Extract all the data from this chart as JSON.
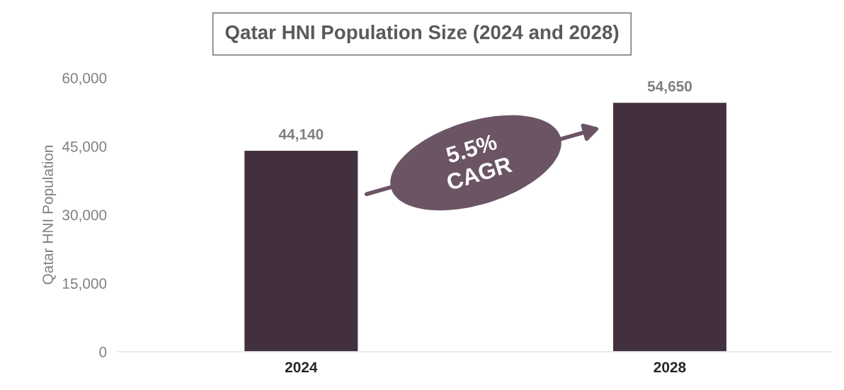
{
  "chart_data": {
    "type": "bar",
    "title": "Qatar HNI Population Size (2024 and 2028)",
    "ylabel": "Qatar HNI Population",
    "categories": [
      "2024",
      "2028"
    ],
    "values": [
      44140,
      54650
    ],
    "value_labels": [
      "44,140",
      "54,650"
    ],
    "color": "#43303f",
    "ylim": [
      0,
      60000
    ],
    "yticks": [
      0,
      {
        "value": 15000,
        "label": "15,000"
      },
      {
        "value": 30000,
        "label": "30,000"
      },
      {
        "value": 45000,
        "label": "45,000"
      },
      {
        "value": 60000,
        "label": "60,000"
      }
    ],
    "grid": false,
    "annotations": [
      "5.5%\nCAGR"
    ]
  }
}
